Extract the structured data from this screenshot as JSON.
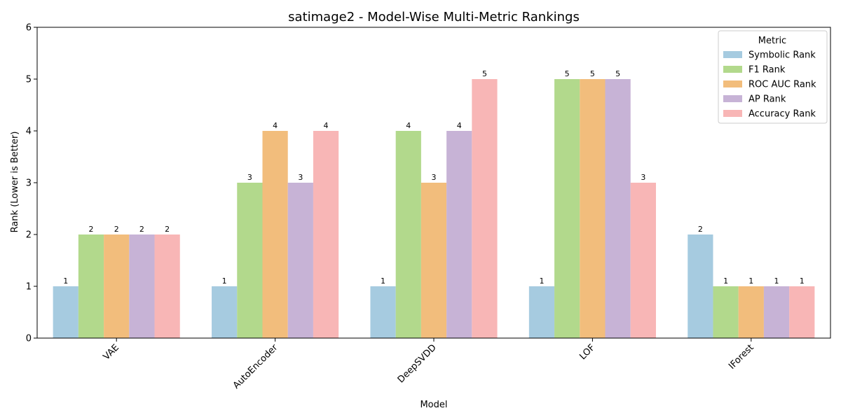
{
  "chart_data": {
    "type": "bar",
    "title": "satimage2 - Model-Wise Multi-Metric Rankings",
    "xlabel": "Model",
    "ylabel": "Rank (Lower is Better)",
    "ylim": [
      0,
      6
    ],
    "yticks": [
      "0",
      "1",
      "2",
      "3",
      "4",
      "5",
      "6"
    ],
    "categories": [
      "VAE",
      "AutoEncoder",
      "DeepSVDD",
      "LOF",
      "IForest"
    ],
    "x_tick_rotation_deg": 45,
    "grid": false,
    "legend": {
      "title": "Metric",
      "placement": "top-right"
    },
    "series": [
      {
        "name": "Symbolic Rank",
        "color": "#a6cbe0",
        "values": [
          1,
          1,
          1,
          1,
          2
        ]
      },
      {
        "name": "F1 Rank",
        "color": "#b2d98c",
        "values": [
          2,
          3,
          4,
          5,
          1
        ]
      },
      {
        "name": "ROC AUC Rank",
        "color": "#f2bd7c",
        "values": [
          2,
          4,
          3,
          5,
          1
        ]
      },
      {
        "name": "AP Rank",
        "color": "#c7b3d6",
        "values": [
          2,
          3,
          4,
          5,
          1
        ]
      },
      {
        "name": "Accuracy Rank",
        "color": "#f8b6b6",
        "values": [
          2,
          4,
          5,
          3,
          1
        ]
      }
    ]
  }
}
